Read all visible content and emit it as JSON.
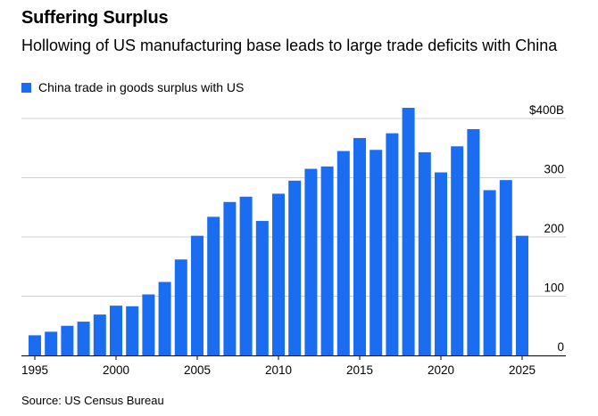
{
  "title": "Suffering Surplus",
  "subtitle": "Hollowing of US manufacturing base leads to large trade deficits with China",
  "source": "Source: US Census Bureau",
  "legend": [
    {
      "label": "China trade in goods surplus with US",
      "color": "#1a6cf0"
    }
  ],
  "chart_data": {
    "type": "bar",
    "series": [
      {
        "name": "China trade in goods surplus with US",
        "color": "#1a6cf0",
        "x": [
          1995,
          1996,
          1997,
          1998,
          1999,
          2000,
          2001,
          2002,
          2003,
          2004,
          2005,
          2006,
          2007,
          2008,
          2009,
          2010,
          2011,
          2012,
          2013,
          2014,
          2015,
          2016,
          2017,
          2018,
          2019,
          2020,
          2021,
          2022,
          2023,
          2024,
          2025
        ],
        "values": [
          34,
          40,
          50,
          57,
          69,
          84,
          83,
          103,
          124,
          162,
          202,
          234,
          259,
          268,
          227,
          273,
          295,
          315,
          319,
          345,
          367,
          347,
          375,
          418,
          343,
          309,
          353,
          382,
          279,
          296,
          202
        ]
      }
    ],
    "ylim": [
      0,
      418
    ],
    "y_ticks": [
      {
        "value": 0,
        "label": "0"
      },
      {
        "value": 100,
        "label": "100"
      },
      {
        "value": 200,
        "label": "200"
      },
      {
        "value": 300,
        "label": "300"
      },
      {
        "value": 400,
        "label": "$400B"
      }
    ],
    "x_ticks": [
      1995,
      2000,
      2005,
      2010,
      2015,
      2020,
      2025
    ],
    "grid": "horizontal",
    "legend_position": "top-left"
  }
}
